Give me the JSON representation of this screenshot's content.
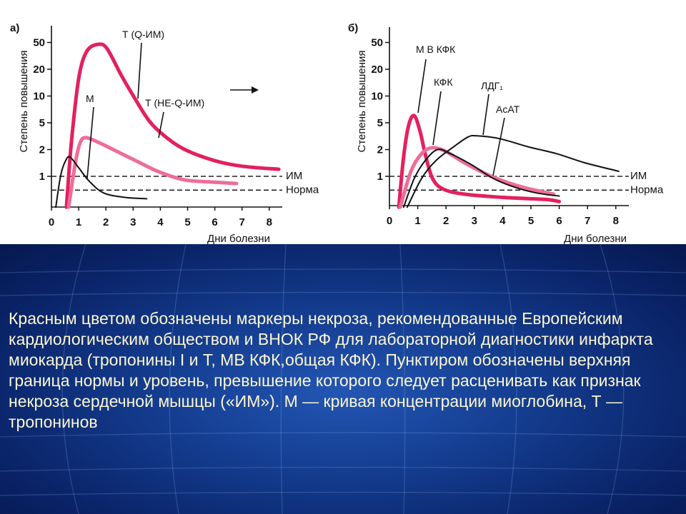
{
  "caption": {
    "lines": [
      "Красным цветом обозначены маркеры некроза, рекомендованные Европейским",
      "кардиологическим обществом и ВНОК РФ для лабораторной диагностики инфаркта",
      "миокарда (тропонины I и Т, МВ КФК,общая КФК). Пунктиром обозначены верхняя",
      "граница нормы и уровень, превышение которого следует расценивать как признак",
      "некроза сердечной мышцы («ИМ»). М — кривая концентрации миоглобина, Т —",
      "тропонинов"
    ],
    "text_color": "#fdf7d2"
  },
  "chart_data": [
    {
      "panel_label": "а)",
      "type": "line",
      "xlabel": "Дни болезни",
      "ylabel": "Степень повышения",
      "xticks": [
        0,
        1,
        2,
        3,
        4,
        5,
        6,
        7,
        8
      ],
      "yticks": [
        1,
        2,
        5,
        10,
        20,
        50
      ],
      "xlim": [
        0,
        8.5
      ],
      "ylim": [
        0.5,
        70
      ],
      "yscale": "log",
      "grid": false,
      "reference_lines": [
        {
          "label": "ИМ",
          "value": 1,
          "style": "dashed"
        },
        {
          "label": "Норма",
          "value": 0.7,
          "style": "dashed"
        }
      ],
      "annotations": [
        {
          "type": "arrow",
          "direction": "right"
        }
      ],
      "series": [
        {
          "name": "Т (Q-ИМ)",
          "color": "#e4205e",
          "x": [
            0.55,
            0.73,
            1.0,
            1.3,
            1.73,
            2.05,
            2.57,
            3.1,
            3.6,
            4.15,
            4.9,
            6.0,
            7.0,
            8.35
          ],
          "y": [
            0.45,
            2.5,
            15.7,
            37,
            47,
            40,
            17,
            9,
            5.2,
            3.2,
            2.0,
            1.5,
            1.3,
            1.2
          ]
        },
        {
          "name": "Т (НЕ-Q-ИМ)",
          "color": "#ee6d98",
          "x": [
            0.63,
            0.87,
            1.05,
            1.26,
            1.78,
            2.44,
            3.1,
            3.9,
            4.9,
            6.0,
            6.8
          ],
          "y": [
            0.45,
            1.37,
            2.5,
            3.0,
            2.5,
            1.88,
            1.5,
            1.14,
            0.91,
            0.86,
            0.83
          ]
        },
        {
          "name": "М",
          "color": "#111111",
          "x": [
            0.16,
            0.34,
            0.52,
            0.68,
            1.0,
            1.39,
            1.92,
            2.7,
            3.5
          ],
          "y": [
            0.45,
            1.03,
            1.5,
            1.65,
            1.25,
            0.88,
            0.65,
            0.58,
            0.56
          ]
        }
      ]
    },
    {
      "panel_label": "б)",
      "type": "line",
      "xlabel": "Дни болезни",
      "ylabel": "Степень повышения",
      "xticks": [
        0,
        1,
        2,
        3,
        4,
        5,
        6,
        7,
        8
      ],
      "yticks": [
        1,
        2,
        5,
        10,
        20,
        50
      ],
      "xlim": [
        0,
        8.5
      ],
      "ylim": [
        0.5,
        70
      ],
      "yscale": "log",
      "grid": false,
      "reference_lines": [
        {
          "label": "ИМ",
          "value": 1,
          "style": "dashed"
        },
        {
          "label": "Норма",
          "value": 0.7,
          "style": "dashed"
        }
      ],
      "series": [
        {
          "name": "М В КФК",
          "color": "#e4205e",
          "x": [
            0.33,
            0.5,
            0.68,
            0.88,
            1.09,
            1.26,
            1.52,
            1.9,
            2.65,
            4.0,
            5.5,
            6.0
          ],
          "y": [
            0.45,
            1.65,
            4.6,
            6.0,
            3.6,
            1.8,
            0.95,
            0.72,
            0.63,
            0.58,
            0.55,
            0.52
          ]
        },
        {
          "name": "КФК",
          "color": "#ee6d98",
          "x": [
            0.38,
            0.76,
            1.14,
            1.52,
            2.0,
            2.65,
            3.66,
            4.67,
            5.8
          ],
          "y": [
            0.45,
            1.14,
            1.8,
            2.13,
            1.9,
            1.42,
            0.98,
            0.76,
            0.63
          ]
        },
        {
          "name": "ЛДГ₁",
          "color": "#111111",
          "x": [
            0.63,
            1.14,
            1.64,
            2.27,
            2.78,
            3.1,
            3.9,
            4.9,
            5.9,
            6.9,
            8.1
          ],
          "y": [
            0.45,
            0.95,
            1.5,
            2.2,
            3.08,
            3.2,
            2.9,
            2.2,
            1.8,
            1.42,
            1.14
          ]
        },
        {
          "name": "АсАТ",
          "color": "#111111",
          "x": [
            0.5,
            0.88,
            1.26,
            1.7,
            2.15,
            2.9,
            3.66,
            4.4,
            5.2,
            6.0
          ],
          "y": [
            0.45,
            0.95,
            1.5,
            2.0,
            1.8,
            1.35,
            0.95,
            0.76,
            0.65,
            0.6
          ]
        }
      ]
    }
  ]
}
